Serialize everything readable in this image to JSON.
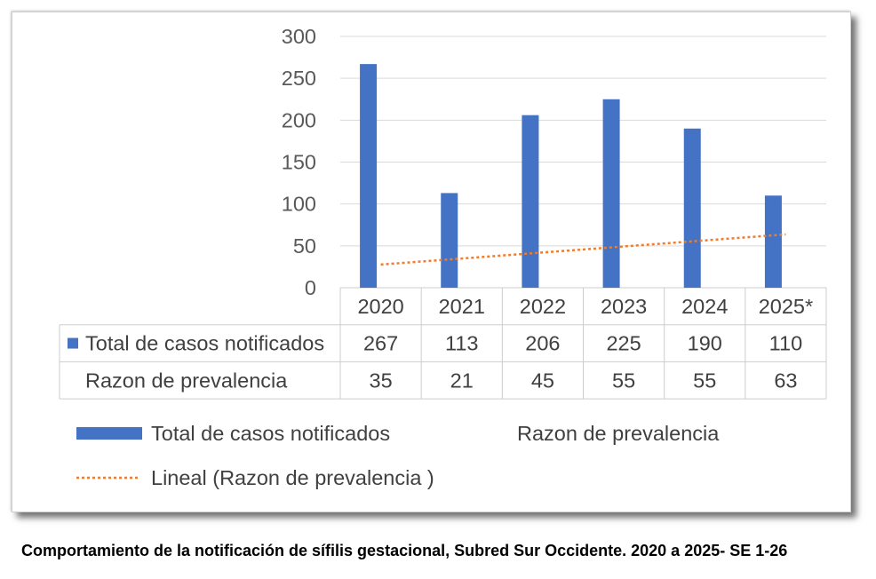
{
  "chart_data": {
    "type": "bar",
    "categories": [
      "2020",
      "2021",
      "2022",
      "2023",
      "2024",
      "2025*"
    ],
    "series": [
      {
        "name": "Total de casos notificados",
        "values": [
          267,
          113,
          206,
          225,
          190,
          110
        ],
        "color": "#4472c4"
      },
      {
        "name": "Razon de prevalencia",
        "values": [
          35,
          21,
          45,
          55,
          55,
          63
        ]
      }
    ],
    "trendline": {
      "label": "Lineal (Razon de prevalencia )",
      "color": "#ed7d31"
    },
    "y_ticks": [
      0,
      50,
      100,
      150,
      200,
      250,
      300
    ],
    "ylim": [
      0,
      300
    ],
    "grid": true,
    "data_table": true,
    "legend": "bottom"
  },
  "caption": "Comportamiento de la notificación de sífilis gestacional, Subred Sur Occidente. 2020 a 2025- SE 1-26"
}
